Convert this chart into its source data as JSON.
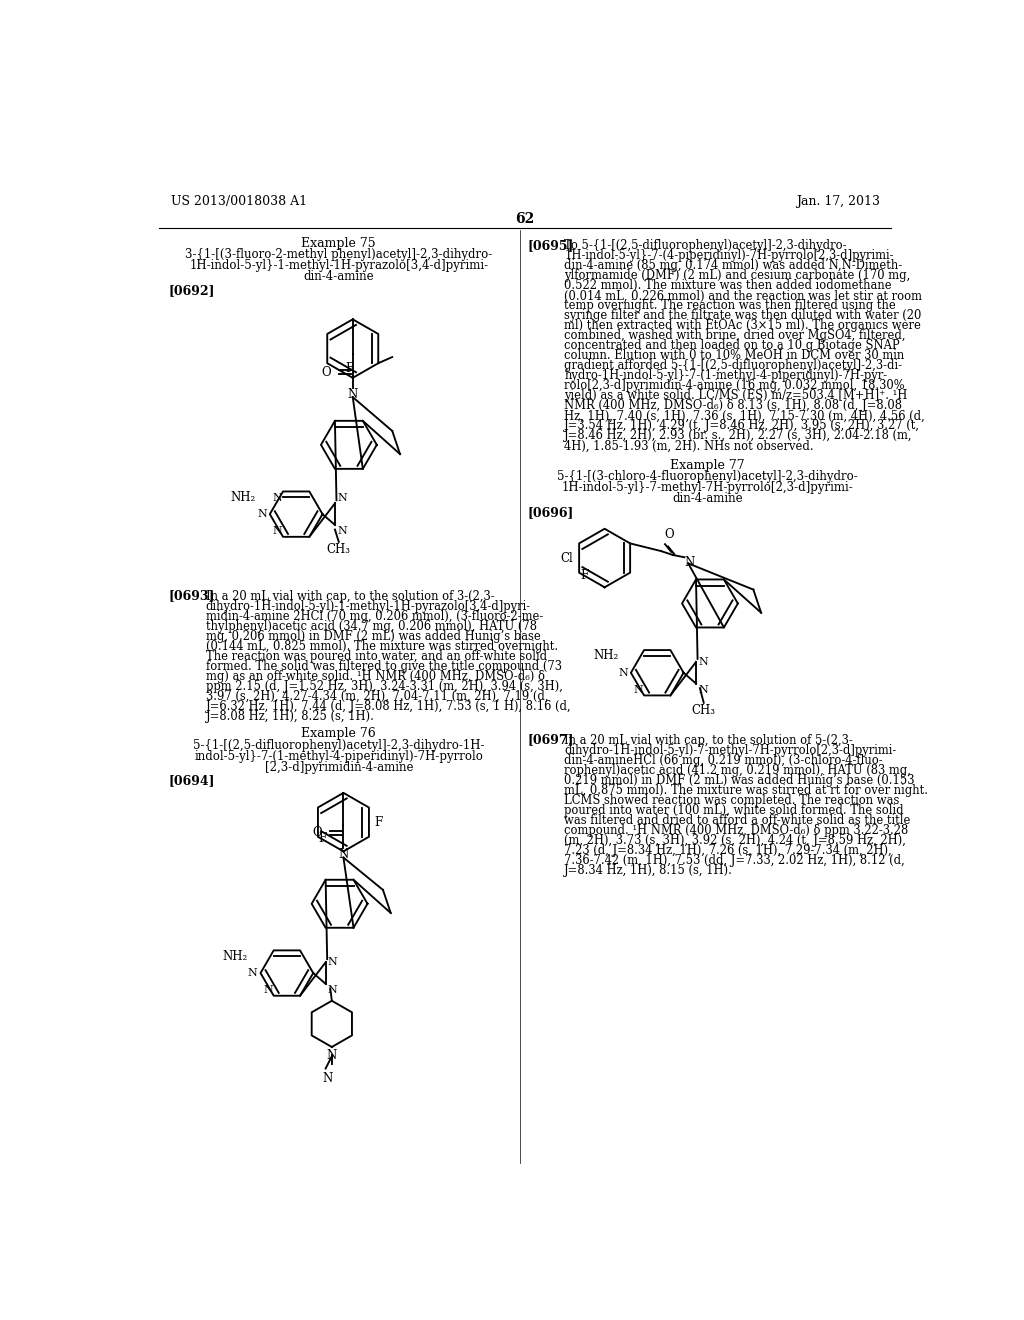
{
  "background_color": "#ffffff",
  "page_header_left": "US 2013/0018038 A1",
  "page_header_right": "Jan. 17, 2013",
  "page_number": "62",
  "font_family": "DejaVu Serif",
  "text_color": "#000000"
}
